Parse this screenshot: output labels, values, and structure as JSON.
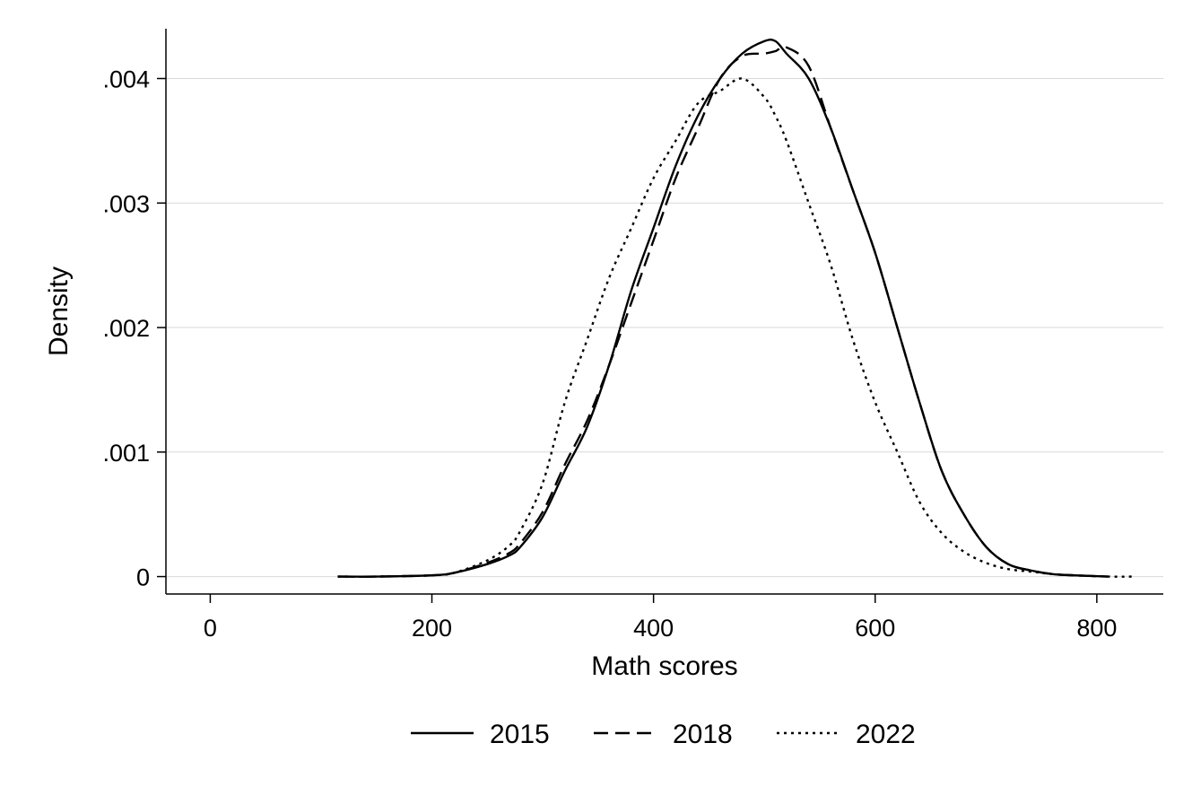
{
  "chart_data": {
    "type": "line",
    "title": "",
    "xlabel": "Math scores",
    "ylabel": "Density",
    "xlim": [
      -40,
      860
    ],
    "ylim": [
      -0.00014,
      0.0044
    ],
    "x_ticks": [
      0,
      200,
      400,
      600,
      800
    ],
    "x_tick_labels": [
      "0",
      "200",
      "400",
      "600",
      "800"
    ],
    "y_ticks": [
      0,
      0.001,
      0.002,
      0.003,
      0.004
    ],
    "y_tick_labels": [
      "0",
      ".001",
      ".002",
      ".003",
      ".004"
    ],
    "grid": "horizontal",
    "legend_position": "bottom",
    "series": [
      {
        "name": "2015",
        "line_style": "solid",
        "color": "#000000",
        "x": [
          115,
          150,
          200,
          220,
          250,
          270,
          280,
          300,
          320,
          340,
          360,
          380,
          400,
          420,
          440,
          460,
          480,
          500,
          510,
          520,
          540,
          560,
          580,
          600,
          620,
          640,
          660,
          680,
          700,
          720,
          740,
          760,
          780,
          810
        ],
        "y": [
          0.0,
          0.0,
          1e-05,
          3e-05,
          0.0001,
          0.00017,
          0.00024,
          0.00048,
          0.00085,
          0.0012,
          0.0017,
          0.0023,
          0.0028,
          0.0033,
          0.0037,
          0.004,
          0.0042,
          0.0043,
          0.0043,
          0.0042,
          0.004,
          0.0036,
          0.0031,
          0.0026,
          0.002,
          0.0014,
          0.00085,
          0.0005,
          0.00024,
          0.0001,
          5e-05,
          2e-05,
          1e-05,
          0.0
        ]
      },
      {
        "name": "2018",
        "line_style": "dashed",
        "color": "#000000",
        "x": [
          115,
          150,
          200,
          220,
          250,
          270,
          280,
          300,
          320,
          340,
          360,
          380,
          400,
          420,
          440,
          460,
          480,
          500,
          510,
          520,
          540,
          560,
          580,
          600,
          620,
          640,
          660,
          680,
          700,
          720,
          740,
          760,
          780,
          810
        ],
        "y": [
          0.0,
          0.0,
          1e-05,
          3e-05,
          0.00011,
          0.00019,
          0.00027,
          0.00052,
          0.0009,
          0.00125,
          0.0017,
          0.0022,
          0.0027,
          0.0032,
          0.0036,
          0.004,
          0.00418,
          0.0042,
          0.00422,
          0.00425,
          0.0041,
          0.0036,
          0.0031,
          0.0026,
          0.002,
          0.0014,
          0.00085,
          0.0005,
          0.00024,
          0.0001,
          5e-05,
          2e-05,
          1e-05,
          0.0
        ]
      },
      {
        "name": "2022",
        "line_style": "dotted",
        "color": "#000000",
        "x": [
          115,
          150,
          200,
          220,
          250,
          270,
          280,
          300,
          320,
          340,
          360,
          380,
          400,
          420,
          440,
          460,
          480,
          500,
          510,
          520,
          540,
          560,
          580,
          600,
          620,
          640,
          660,
          680,
          700,
          720,
          740,
          760,
          780,
          810,
          835
        ],
        "y": [
          0.0,
          0.0,
          1e-05,
          3e-05,
          0.00013,
          0.00025,
          0.00037,
          0.00075,
          0.0014,
          0.0019,
          0.0024,
          0.0028,
          0.0032,
          0.0035,
          0.0038,
          0.0039,
          0.004,
          0.00385,
          0.0037,
          0.0035,
          0.003,
          0.0025,
          0.0019,
          0.0014,
          0.001,
          0.0006,
          0.00035,
          0.0002,
          0.00011,
          6e-05,
          4e-05,
          2e-05,
          1e-05,
          0.0,
          0.0
        ]
      }
    ]
  }
}
